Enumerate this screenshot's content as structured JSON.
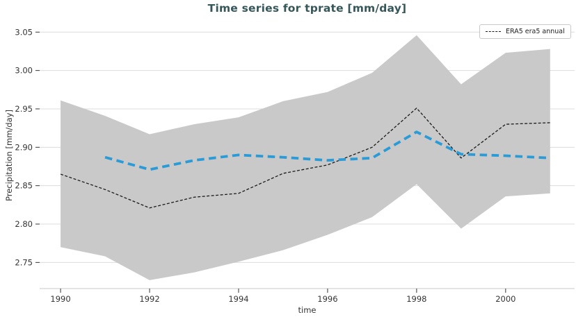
{
  "chart_data": {
    "type": "line",
    "title": "Time series for tprate [mm/day]",
    "xlabel": "time",
    "ylabel": "Precipitation [mm/day]",
    "xlim": [
      1989.53,
      2001.55
    ],
    "ylim": [
      2.716,
      3.062
    ],
    "grid": true,
    "x_ticks": [
      1990,
      1992,
      1994,
      1996,
      1998,
      2000
    ],
    "x_tick_labels": [
      "1990",
      "1992",
      "1994",
      "1996",
      "1998",
      "2000"
    ],
    "y_ticks": [
      3.05,
      3.0,
      2.95,
      2.9,
      2.85,
      2.8,
      2.75
    ],
    "y_tick_labels": [
      "3.05",
      "3.00",
      "2.95",
      "2.90",
      "2.85",
      "2.80",
      "2.75"
    ],
    "legend": {
      "position": "upper right",
      "entries": [
        {
          "label": "ERA5 era5 annual",
          "style": "dashed",
          "color": "#1a1a1a"
        }
      ]
    },
    "colors": {
      "title": "#35575a",
      "grid": "#dcdcdc",
      "axis_line": "#c8c8c8",
      "tick": "#333333",
      "tick_label": "#333333",
      "band": "#c9c9c9",
      "annual_line": "#1a1a1a",
      "mean_line": "#2b9bd7"
    },
    "series": [
      {
        "name": "uncertainty-band",
        "kind": "band",
        "x": [
          1990,
          1991,
          1992,
          1993,
          1994,
          1995,
          1996,
          1997,
          1998,
          1999,
          2000,
          2001
        ],
        "upper": [
          2.961,
          2.941,
          2.917,
          2.93,
          2.939,
          2.96,
          2.972,
          2.997,
          3.046,
          2.982,
          3.023,
          3.028
        ],
        "lower": [
          2.77,
          2.758,
          2.727,
          2.737,
          2.751,
          2.766,
          2.786,
          2.809,
          2.852,
          2.794,
          2.836,
          2.84
        ]
      },
      {
        "name": "ERA5 era5 annual",
        "kind": "line",
        "dash": "fine",
        "x": [
          1990,
          1991,
          1992,
          1993,
          1994,
          1995,
          1996,
          1997,
          1998,
          1999,
          2000,
          2001
        ],
        "y": [
          2.865,
          2.845,
          2.821,
          2.835,
          2.84,
          2.866,
          2.877,
          2.9,
          2.951,
          2.886,
          2.93,
          2.932
        ]
      },
      {
        "name": "running mean",
        "kind": "line",
        "dash": "wide",
        "x": [
          1991,
          1992,
          1993,
          1994,
          1995,
          1996,
          1997,
          1998,
          1999,
          2000,
          2001
        ],
        "y": [
          2.887,
          2.871,
          2.883,
          2.89,
          2.887,
          2.883,
          2.886,
          2.92,
          2.891,
          2.889,
          2.886
        ]
      }
    ]
  }
}
